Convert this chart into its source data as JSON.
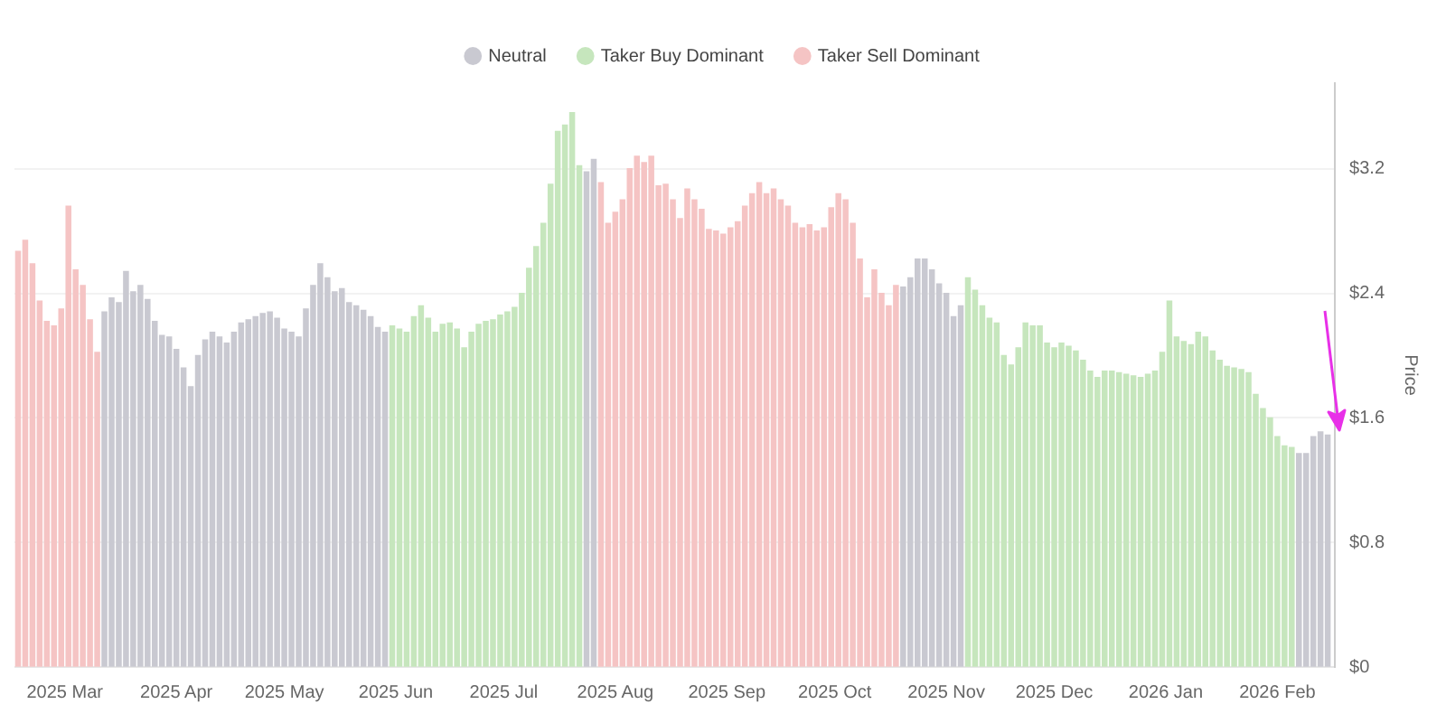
{
  "chart_data": {
    "type": "bar",
    "ylabel": "Price",
    "legend": "top",
    "grid": "y",
    "marker": "circle",
    "xlim": [
      "2025-02-15",
      "2026-02-17"
    ],
    "ylim": [
      0,
      3.75
    ],
    "xticks": [
      {
        "value": "2025-03-01",
        "label": "2025 Mar"
      },
      {
        "value": "2025-04-01",
        "label": "2025 Apr"
      },
      {
        "value": "2025-05-01",
        "label": "2025 May"
      },
      {
        "value": "2025-06-01",
        "label": "2025 Jun"
      },
      {
        "value": "2025-07-01",
        "label": "2025 Jul"
      },
      {
        "value": "2025-08-01",
        "label": "2025 Aug"
      },
      {
        "value": "2025-09-01",
        "label": "2025 Sep"
      },
      {
        "value": "2025-10-01",
        "label": "2025 Oct"
      },
      {
        "value": "2025-11-01",
        "label": "2025 Nov"
      },
      {
        "value": "2025-12-01",
        "label": "2025 Dec"
      },
      {
        "value": "2026-01-01",
        "label": "2026 Jan"
      },
      {
        "value": "2026-02-01",
        "label": "2026 Feb"
      }
    ],
    "yticks": [
      {
        "value": 0,
        "label": "$0"
      },
      {
        "value": 0.8,
        "label": "$0.8"
      },
      {
        "value": 1.6,
        "label": "$1.6"
      },
      {
        "value": 2.4,
        "label": "$2.4"
      },
      {
        "value": 3.2,
        "label": "$3.2"
      }
    ],
    "series": [
      {
        "name": "Neutral",
        "color": "#c9c9d1",
        "x": [
          "2025-03-12",
          "2025-03-14",
          "2025-03-16",
          "2025-03-18",
          "2025-03-20",
          "2025-03-22",
          "2025-03-24",
          "2025-03-26",
          "2025-03-28",
          "2025-03-30",
          "2025-04-01",
          "2025-04-03",
          "2025-04-05",
          "2025-04-07",
          "2025-04-09",
          "2025-04-11",
          "2025-04-13",
          "2025-04-15",
          "2025-04-17",
          "2025-04-19",
          "2025-04-21",
          "2025-04-23",
          "2025-04-25",
          "2025-04-27",
          "2025-04-29",
          "2025-05-01",
          "2025-05-03",
          "2025-05-05",
          "2025-05-07",
          "2025-05-09",
          "2025-05-11",
          "2025-05-13",
          "2025-05-15",
          "2025-05-17",
          "2025-05-19",
          "2025-05-21",
          "2025-05-23",
          "2025-05-25",
          "2025-05-27",
          "2025-05-29",
          "2025-07-24",
          "2025-07-26",
          "2025-10-20",
          "2025-10-22",
          "2025-10-24",
          "2025-10-26",
          "2025-10-28",
          "2025-10-30",
          "2025-11-01",
          "2025-11-03",
          "2025-11-05",
          "2026-02-07",
          "2026-02-09",
          "2026-02-11",
          "2026-02-13",
          "2026-02-15"
        ],
        "values": [
          2.28,
          2.37,
          2.34,
          2.54,
          2.41,
          2.45,
          2.36,
          2.22,
          2.13,
          2.12,
          2.04,
          1.92,
          1.8,
          2.0,
          2.1,
          2.15,
          2.12,
          2.08,
          2.15,
          2.21,
          2.23,
          2.25,
          2.27,
          2.28,
          2.24,
          2.17,
          2.15,
          2.12,
          2.3,
          2.45,
          2.59,
          2.5,
          2.41,
          2.43,
          2.34,
          2.32,
          2.29,
          2.25,
          2.18,
          2.15,
          3.18,
          3.26,
          2.44,
          2.5,
          2.62,
          2.62,
          2.55,
          2.46,
          2.4,
          2.25,
          2.32,
          1.37,
          1.37,
          1.48,
          1.51,
          1.49
        ]
      },
      {
        "name": "Taker Buy Dominant",
        "color": "#c6e6bd",
        "x": [
          "2025-05-31",
          "2025-06-02",
          "2025-06-04",
          "2025-06-06",
          "2025-06-08",
          "2025-06-10",
          "2025-06-12",
          "2025-06-14",
          "2025-06-16",
          "2025-06-18",
          "2025-06-20",
          "2025-06-22",
          "2025-06-24",
          "2025-06-26",
          "2025-06-28",
          "2025-06-30",
          "2025-07-02",
          "2025-07-04",
          "2025-07-06",
          "2025-07-08",
          "2025-07-10",
          "2025-07-12",
          "2025-07-14",
          "2025-07-16",
          "2025-07-18",
          "2025-07-20",
          "2025-07-22",
          "2025-11-07",
          "2025-11-09",
          "2025-11-11",
          "2025-11-13",
          "2025-11-15",
          "2025-11-17",
          "2025-11-19",
          "2025-11-21",
          "2025-11-23",
          "2025-11-25",
          "2025-11-27",
          "2025-11-29",
          "2025-12-01",
          "2025-12-03",
          "2025-12-05",
          "2025-12-07",
          "2025-12-09",
          "2025-12-11",
          "2025-12-13",
          "2025-12-15",
          "2025-12-17",
          "2025-12-19",
          "2025-12-21",
          "2025-12-23",
          "2025-12-25",
          "2025-12-27",
          "2025-12-29",
          "2025-12-31",
          "2026-01-02",
          "2026-01-04",
          "2026-01-06",
          "2026-01-08",
          "2026-01-10",
          "2026-01-12",
          "2026-01-14",
          "2026-01-16",
          "2026-01-18",
          "2026-01-20",
          "2026-01-22",
          "2026-01-24",
          "2026-01-26",
          "2026-01-28",
          "2026-01-30",
          "2026-02-01",
          "2026-02-03",
          "2026-02-05"
        ],
        "values": [
          2.19,
          2.17,
          2.15,
          2.25,
          2.32,
          2.24,
          2.15,
          2.2,
          2.21,
          2.17,
          2.05,
          2.15,
          2.2,
          2.22,
          2.23,
          2.26,
          2.28,
          2.31,
          2.4,
          2.56,
          2.7,
          2.85,
          3.1,
          3.44,
          3.48,
          3.56,
          3.22,
          2.5,
          2.42,
          2.32,
          2.24,
          2.21,
          2.0,
          1.94,
          2.05,
          2.21,
          2.19,
          2.19,
          2.08,
          2.05,
          2.08,
          2.06,
          2.03,
          1.97,
          1.9,
          1.86,
          1.9,
          1.9,
          1.89,
          1.88,
          1.87,
          1.86,
          1.88,
          1.9,
          2.02,
          2.35,
          2.12,
          2.09,
          2.07,
          2.15,
          2.12,
          2.03,
          1.97,
          1.93,
          1.92,
          1.91,
          1.89,
          1.75,
          1.66,
          1.6,
          1.48,
          1.42,
          1.41
        ]
      },
      {
        "name": "Taker Sell Dominant",
        "color": "#f5c4c4",
        "x": [
          "2025-02-16",
          "2025-02-18",
          "2025-02-20",
          "2025-02-22",
          "2025-02-24",
          "2025-02-26",
          "2025-02-28",
          "2025-03-02",
          "2025-03-04",
          "2025-03-06",
          "2025-03-08",
          "2025-03-10",
          "2025-07-28",
          "2025-07-30",
          "2025-08-01",
          "2025-08-03",
          "2025-08-05",
          "2025-08-07",
          "2025-08-09",
          "2025-08-11",
          "2025-08-13",
          "2025-08-15",
          "2025-08-17",
          "2025-08-19",
          "2025-08-21",
          "2025-08-23",
          "2025-08-25",
          "2025-08-27",
          "2025-08-29",
          "2025-08-31",
          "2025-09-02",
          "2025-09-04",
          "2025-09-06",
          "2025-09-08",
          "2025-09-10",
          "2025-09-12",
          "2025-09-14",
          "2025-09-16",
          "2025-09-18",
          "2025-09-20",
          "2025-09-22",
          "2025-09-24",
          "2025-09-26",
          "2025-09-28",
          "2025-09-30",
          "2025-10-02",
          "2025-10-04",
          "2025-10-06",
          "2025-10-08",
          "2025-10-10",
          "2025-10-12",
          "2025-10-14",
          "2025-10-16",
          "2025-10-18"
        ],
        "values": [
          2.67,
          2.74,
          2.59,
          2.35,
          2.22,
          2.19,
          2.3,
          2.96,
          2.55,
          2.45,
          2.23,
          2.02,
          3.11,
          2.85,
          2.92,
          3.0,
          3.2,
          3.28,
          3.24,
          3.28,
          3.09,
          3.1,
          3.0,
          2.88,
          3.07,
          3.0,
          2.94,
          2.81,
          2.8,
          2.78,
          2.82,
          2.86,
          2.96,
          3.04,
          3.11,
          3.04,
          3.07,
          3.0,
          2.96,
          2.85,
          2.82,
          2.84,
          2.8,
          2.82,
          2.95,
          3.04,
          3.0,
          2.85,
          2.62,
          2.37,
          2.55,
          2.4,
          2.32,
          2.45
        ]
      }
    ]
  }
}
